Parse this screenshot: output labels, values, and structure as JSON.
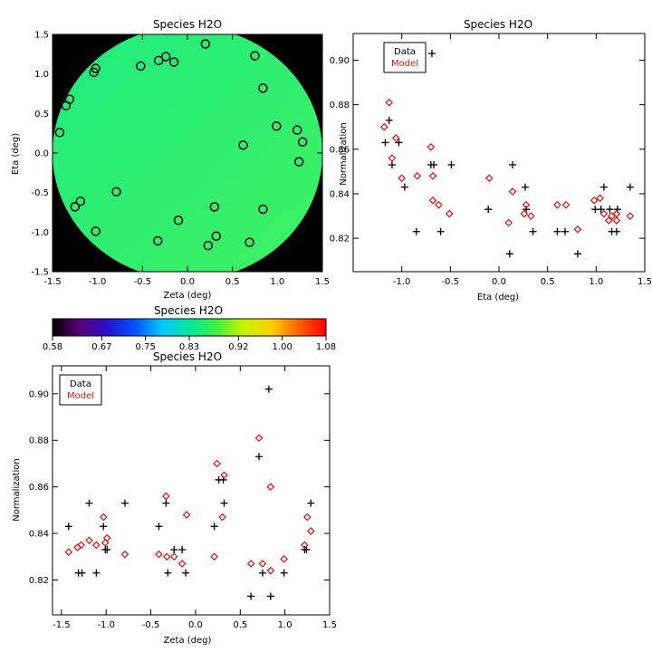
{
  "chart_data": [
    {
      "type": "image",
      "title": "Species H2O",
      "xlabel": "Zeta (deg)",
      "ylabel": "Eta (deg)",
      "xlim": [
        -1.5,
        1.5
      ],
      "ylim": [
        -1.5,
        1.5
      ],
      "xticks": [
        "-1.5",
        "-1.0",
        "-0.5",
        "0.0",
        "0.5",
        "1.0",
        "1.5"
      ],
      "yticks": [
        "-1.5",
        "-1.0",
        "-0.5",
        "0.0",
        "0.5",
        "1.0",
        "1.5"
      ],
      "field_colors": [
        "#1fee80",
        "#3ff060"
      ],
      "background": "#000000",
      "series": [
        {
          "values": [
            [
              -1.42,
              0.26
            ],
            [
              -1.31,
              0.68
            ],
            [
              -1.35,
              0.6
            ],
            [
              -1.04,
              1.02
            ],
            [
              -1.02,
              1.07
            ],
            [
              -1.25,
              -0.68
            ],
            [
              -1.19,
              -0.61
            ],
            [
              -1.02,
              -0.99
            ],
            [
              -0.79,
              -0.49
            ],
            [
              -0.33,
              -1.11
            ],
            [
              -0.1,
              -0.85
            ],
            [
              0.23,
              -1.17
            ],
            [
              0.3,
              -0.68
            ],
            [
              0.32,
              -1.05
            ],
            [
              0.62,
              0.1
            ],
            [
              0.69,
              -1.13
            ],
            [
              0.84,
              -0.71
            ],
            [
              0.84,
              0.82
            ],
            [
              0.99,
              0.34
            ],
            [
              0.75,
              1.23
            ],
            [
              1.22,
              0.29
            ],
            [
              1.28,
              0.14
            ],
            [
              1.24,
              -0.11
            ],
            [
              0.2,
              1.38
            ],
            [
              -0.32,
              1.17
            ],
            [
              -0.24,
              1.22
            ],
            [
              -0.15,
              1.15
            ],
            [
              -0.52,
              1.1
            ]
          ]
        }
      ]
    },
    {
      "type": "scatter",
      "title": "Species H2O",
      "xlabel": "Eta (deg)",
      "ylabel": "Normalization",
      "xlim": [
        -1.5,
        1.5
      ],
      "ylim": [
        0.805,
        0.912
      ],
      "xticks": [
        "-1.0",
        "-0.5",
        "0.0",
        "0.5",
        "1.0",
        "1.5"
      ],
      "yticks": [
        "0.82",
        "0.84",
        "0.86",
        "0.88",
        "0.90"
      ],
      "legend": {
        "position": "top-left",
        "items": [
          "Data",
          "Model"
        ]
      },
      "series": [
        {
          "name": "Data",
          "color": "#000000",
          "marker": "plus",
          "values": [
            [
              -1.17,
              0.863
            ],
            [
              -1.13,
              0.873
            ],
            [
              -1.1,
              0.853
            ],
            [
              -1.03,
              0.863
            ],
            [
              -0.97,
              0.843
            ],
            [
              -0.85,
              0.823
            ],
            [
              -0.7,
              0.853
            ],
            [
              -0.69,
              0.903
            ],
            [
              -0.67,
              0.853
            ],
            [
              -0.6,
              0.823
            ],
            [
              -0.49,
              0.853
            ],
            [
              -0.11,
              0.833
            ],
            [
              0.11,
              0.813
            ],
            [
              0.14,
              0.853
            ],
            [
              0.27,
              0.843
            ],
            [
              0.28,
              0.833
            ],
            [
              0.35,
              0.823
            ],
            [
              0.6,
              0.823
            ],
            [
              0.68,
              0.823
            ],
            [
              0.81,
              0.813
            ],
            [
              0.99,
              0.833
            ],
            [
              1.05,
              0.833
            ],
            [
              1.08,
              0.843
            ],
            [
              1.14,
              0.833
            ],
            [
              1.16,
              0.823
            ],
            [
              1.21,
              0.823
            ],
            [
              1.22,
              0.833
            ],
            [
              1.35,
              0.843
            ]
          ]
        },
        {
          "name": "Model",
          "color": "#e01010",
          "marker": "diamond",
          "values": [
            [
              -1.18,
              0.87
            ],
            [
              -1.13,
              0.881
            ],
            [
              -1.1,
              0.856
            ],
            [
              -1.06,
              0.865
            ],
            [
              -1.0,
              0.847
            ],
            [
              -0.84,
              0.848
            ],
            [
              -0.7,
              0.861
            ],
            [
              -0.68,
              0.848
            ],
            [
              -0.68,
              0.837
            ],
            [
              -0.62,
              0.835
            ],
            [
              -0.51,
              0.831
            ],
            [
              -0.1,
              0.847
            ],
            [
              0.1,
              0.827
            ],
            [
              0.14,
              0.841
            ],
            [
              0.26,
              0.831
            ],
            [
              0.28,
              0.835
            ],
            [
              0.33,
              0.83
            ],
            [
              0.6,
              0.835
            ],
            [
              0.69,
              0.835
            ],
            [
              0.81,
              0.824
            ],
            [
              0.98,
              0.837
            ],
            [
              1.04,
              0.838
            ],
            [
              1.08,
              0.831
            ],
            [
              1.13,
              0.828
            ],
            [
              1.16,
              0.83
            ],
            [
              1.21,
              0.828
            ],
            [
              1.21,
              0.831
            ],
            [
              1.35,
              0.83
            ]
          ]
        }
      ]
    },
    {
      "type": "colorbar",
      "title": "Species H2O",
      "ticks": [
        "0.58",
        "0.67",
        "0.75",
        "0.83",
        "0.92",
        "1.00",
        "1.08"
      ],
      "range": [
        0.58,
        1.08
      ],
      "colors": [
        "#000000",
        "#5a007a",
        "#2a10c8",
        "#0050ff",
        "#00c8ff",
        "#00e8a0",
        "#40f040",
        "#c8f000",
        "#ffd000",
        "#ff6000",
        "#ff0000"
      ]
    },
    {
      "type": "scatter",
      "title": "Species H2O",
      "xlabel": "Zeta (deg)",
      "ylabel": "Normalization",
      "xlim": [
        -1.6,
        1.5
      ],
      "ylim": [
        0.805,
        0.912
      ],
      "xticks": [
        "-1.5",
        "-1.0",
        "-0.5",
        "0.0",
        "0.5",
        "1.0",
        "1.5"
      ],
      "yticks": [
        "0.82",
        "0.84",
        "0.86",
        "0.88",
        "0.90"
      ],
      "legend": {
        "position": "top-left",
        "items": [
          "Data",
          "Model"
        ]
      },
      "series": [
        {
          "name": "Data",
          "color": "#000000",
          "marker": "plus",
          "values": [
            [
              -1.42,
              0.843
            ],
            [
              -1.31,
              0.823
            ],
            [
              -1.27,
              0.823
            ],
            [
              -1.19,
              0.853
            ],
            [
              -1.11,
              0.823
            ],
            [
              -1.03,
              0.843
            ],
            [
              -1.01,
              0.833
            ],
            [
              -0.99,
              0.833
            ],
            [
              -0.79,
              0.853
            ],
            [
              -0.41,
              0.843
            ],
            [
              -0.33,
              0.853
            ],
            [
              -0.31,
              0.823
            ],
            [
              -0.24,
              0.833
            ],
            [
              -0.15,
              0.833
            ],
            [
              -0.11,
              0.823
            ],
            [
              0.21,
              0.843
            ],
            [
              0.26,
              0.863
            ],
            [
              0.31,
              0.863
            ],
            [
              0.32,
              0.853
            ],
            [
              0.62,
              0.813
            ],
            [
              0.71,
              0.873
            ],
            [
              0.75,
              0.823
            ],
            [
              0.82,
              0.902
            ],
            [
              0.84,
              0.813
            ],
            [
              0.99,
              0.823
            ],
            [
              1.22,
              0.833
            ],
            [
              1.24,
              0.833
            ],
            [
              1.29,
              0.853
            ]
          ]
        },
        {
          "name": "Model",
          "color": "#e01010",
          "marker": "diamond",
          "values": [
            [
              -1.42,
              0.832
            ],
            [
              -1.32,
              0.834
            ],
            [
              -1.28,
              0.835
            ],
            [
              -1.19,
              0.837
            ],
            [
              -1.11,
              0.835
            ],
            [
              -1.03,
              0.847
            ],
            [
              -1.01,
              0.836
            ],
            [
              -0.99,
              0.838
            ],
            [
              -0.79,
              0.831
            ],
            [
              -0.41,
              0.831
            ],
            [
              -0.33,
              0.856
            ],
            [
              -0.32,
              0.83
            ],
            [
              -0.24,
              0.83
            ],
            [
              -0.15,
              0.827
            ],
            [
              -0.1,
              0.848
            ],
            [
              0.21,
              0.83
            ],
            [
              0.24,
              0.87
            ],
            [
              0.3,
              0.847
            ],
            [
              0.32,
              0.865
            ],
            [
              0.62,
              0.827
            ],
            [
              0.71,
              0.881
            ],
            [
              0.75,
              0.827
            ],
            [
              0.84,
              0.86
            ],
            [
              0.84,
              0.824
            ],
            [
              0.99,
              0.829
            ],
            [
              1.22,
              0.835
            ],
            [
              1.25,
              0.847
            ],
            [
              1.29,
              0.841
            ]
          ]
        }
      ]
    }
  ]
}
